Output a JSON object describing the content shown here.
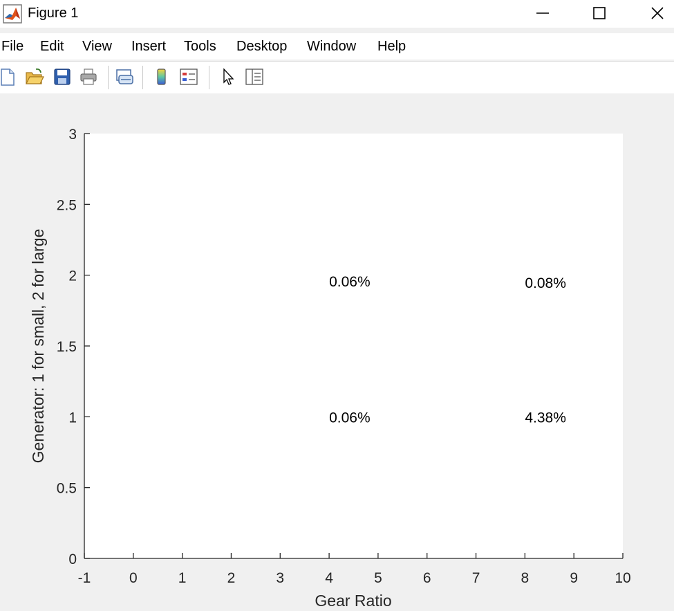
{
  "window": {
    "title": "Figure 1",
    "app_icon": "matlab-logo-icon",
    "controls": [
      "minimize-icon",
      "maximize-icon",
      "close-icon"
    ]
  },
  "menu": {
    "items": [
      {
        "label": "File"
      },
      {
        "label": "Edit"
      },
      {
        "label": "View"
      },
      {
        "label": "Insert"
      },
      {
        "label": "Tools"
      },
      {
        "label": "Desktop"
      },
      {
        "label": "Window"
      },
      {
        "label": "Help"
      }
    ]
  },
  "toolbar": {
    "buttons": [
      "new-figure-icon",
      "open-file-icon",
      "save-icon",
      "print-icon",
      "link-plot-icon",
      "colorbar-icon",
      "legend-icon",
      "edit-plot-pointer-icon",
      "property-inspector-icon"
    ]
  },
  "chart_data": {
    "type": "text-annotations",
    "xlabel": "Gear Ratio",
    "ylabel": "Generator: 1 for small, 2 for large",
    "xlim": [
      -1,
      10
    ],
    "ylim": [
      0,
      3
    ],
    "xticks": [
      "-1",
      "0",
      "1",
      "2",
      "3",
      "4",
      "5",
      "6",
      "7",
      "8",
      "9",
      "10"
    ],
    "yticks": [
      "0",
      "0.5",
      "1",
      "1.5",
      "2",
      "2.5",
      "3"
    ],
    "annotations": [
      {
        "x": 4,
        "y": 1.96,
        "text": "0.06%"
      },
      {
        "x": 8,
        "y": 1.95,
        "text": "0.08%"
      },
      {
        "x": 4,
        "y": 1.0,
        "text": "0.06%"
      },
      {
        "x": 8,
        "y": 1.0,
        "text": "4.38%"
      }
    ],
    "grid": false,
    "box": false
  }
}
